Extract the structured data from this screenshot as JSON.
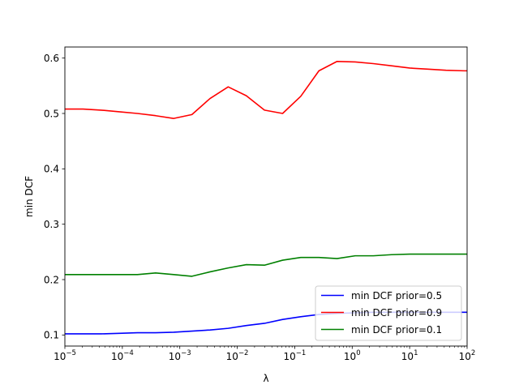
{
  "chart_data": {
    "type": "line",
    "title": "",
    "xlabel": "λ",
    "ylabel": "min DCF",
    "xscale": "log",
    "xlim": [
      1e-05,
      100
    ],
    "ylim": [
      0.08,
      0.62
    ],
    "grid": false,
    "legend_position": "lower-right",
    "x_ticks": [
      {
        "base": "10",
        "exp": "−5",
        "value": 1e-05
      },
      {
        "base": "10",
        "exp": "−4",
        "value": 0.0001
      },
      {
        "base": "10",
        "exp": "−3",
        "value": 0.001
      },
      {
        "base": "10",
        "exp": "−2",
        "value": 0.01
      },
      {
        "base": "10",
        "exp": "−1",
        "value": 0.1
      },
      {
        "base": "10",
        "exp": "0",
        "value": 1
      },
      {
        "base": "10",
        "exp": "1",
        "value": 10
      },
      {
        "base": "10",
        "exp": "2",
        "value": 100
      }
    ],
    "y_ticks": [
      {
        "label": "0.1",
        "value": 0.1
      },
      {
        "label": "0.2",
        "value": 0.2
      },
      {
        "label": "0.3",
        "value": 0.3
      },
      {
        "label": "0.4",
        "value": 0.4
      },
      {
        "label": "0.5",
        "value": 0.5
      },
      {
        "label": "0.6",
        "value": 0.6
      }
    ],
    "x": [
      1e-05,
      2.069e-05,
      4.281e-05,
      8.859e-05,
      0.0001833,
      0.0003793,
      0.0007848,
      0.001624,
      0.00336,
      0.006952,
      0.01438,
      0.02976,
      0.06158,
      0.1274,
      0.2637,
      0.5456,
      1.129,
      2.336,
      4.833,
      10.0,
      20.69,
      42.81,
      88.59,
      100.0
    ],
    "series": [
      {
        "name": "min DCF prior=0.5",
        "color": "#0000ff",
        "values": [
          0.102,
          0.102,
          0.102,
          0.103,
          0.104,
          0.104,
          0.105,
          0.107,
          0.109,
          0.112,
          0.117,
          0.121,
          0.128,
          0.133,
          0.137,
          0.139,
          0.14,
          0.141,
          0.141,
          0.141,
          0.141,
          0.141,
          0.141,
          0.141
        ]
      },
      {
        "name": "min DCF prior=0.9",
        "color": "#ff0000",
        "values": [
          0.508,
          0.508,
          0.506,
          0.503,
          0.5,
          0.496,
          0.491,
          0.498,
          0.527,
          0.548,
          0.532,
          0.506,
          0.5,
          0.531,
          0.577,
          0.594,
          0.593,
          0.59,
          0.586,
          0.582,
          0.58,
          0.578,
          0.577,
          0.577
        ]
      },
      {
        "name": "min DCF prior=0.1",
        "color": "#008000",
        "values": [
          0.209,
          0.209,
          0.209,
          0.209,
          0.209,
          0.212,
          0.209,
          0.206,
          0.214,
          0.221,
          0.227,
          0.226,
          0.235,
          0.24,
          0.24,
          0.238,
          0.243,
          0.243,
          0.245,
          0.246,
          0.246,
          0.246,
          0.246,
          0.246
        ]
      }
    ]
  }
}
